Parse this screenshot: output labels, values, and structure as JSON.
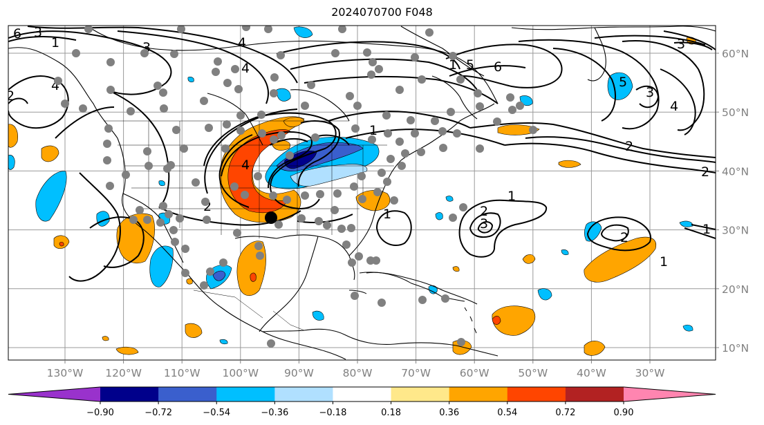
{
  "title": "2024070700 F048",
  "axes": {
    "lon_ticks": [
      {
        "lon": -130,
        "label": "130°W"
      },
      {
        "lon": -120,
        "label": "120°W"
      },
      {
        "lon": -110,
        "label": "110°W"
      },
      {
        "lon": -100,
        "label": "100°W"
      },
      {
        "lon": -90,
        "label": "90°W"
      },
      {
        "lon": -80,
        "label": "80°W"
      },
      {
        "lon": -70,
        "label": "70°W"
      },
      {
        "lon": -60,
        "label": "60°W"
      },
      {
        "lon": -50,
        "label": "50°W"
      },
      {
        "lon": -40,
        "label": "40°W"
      },
      {
        "lon": -30,
        "label": "30°W"
      }
    ],
    "lat_ticks": [
      {
        "lat": 60,
        "label": "60°N"
      },
      {
        "lat": 50,
        "label": "50°N"
      },
      {
        "lat": 40,
        "label": "40°N"
      },
      {
        "lat": 30,
        "label": "30°N"
      },
      {
        "lat": 20,
        "label": "20°N"
      },
      {
        "lat": 10,
        "label": "10°N"
      }
    ]
  },
  "colorbar": {
    "labels": [
      "−0.90",
      "−0.72",
      "−0.54",
      "−0.36",
      "−0.18",
      "0.18",
      "0.36",
      "0.54",
      "0.72",
      "0.90"
    ],
    "colors": [
      "#9932cc",
      "#00008b",
      "#3a5fcd",
      "#00bfff",
      "#b0e0ff",
      "#ffffff",
      "#ffe88a",
      "#ffa500",
      "#ff4500",
      "#b22222",
      "#ff85b0"
    ]
  },
  "contour_labels": [
    "3",
    "4",
    "1",
    "2",
    "6",
    "3",
    "4",
    "5",
    "6",
    "1",
    "2",
    "4",
    "1",
    "1",
    "2",
    "3",
    "4",
    "1",
    "2",
    "3",
    "1",
    "5",
    "3",
    "2",
    "1",
    "4",
    "2"
  ],
  "station_marker_color": "#808080",
  "highlight_marker_color": "#000000"
}
